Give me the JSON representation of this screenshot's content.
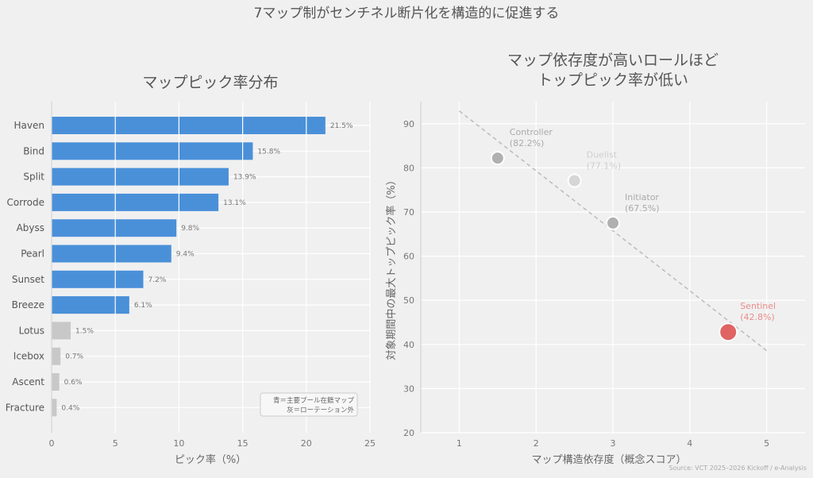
{
  "suptitle": "7マップ制がセンチネル断片化を構造的に促進する",
  "source": "Source: VCT 2025–2026 Kickoff / e-Analysis",
  "colors": {
    "primary": "#4a90d9",
    "rotation": "#c8c8c8",
    "sentinel": "#e06464",
    "other_role": "#b4b4b4",
    "trend": "#bbbbbb"
  },
  "chart_data": [
    {
      "type": "bar",
      "orientation": "horizontal",
      "title": "マップピック率分布",
      "xlabel": "ピック率（%）",
      "ylabel": "",
      "xlim": [
        0,
        25
      ],
      "xticks": [
        0,
        5,
        10,
        15,
        20,
        25
      ],
      "categories": [
        "Haven",
        "Bind",
        "Split",
        "Corrode",
        "Abyss",
        "Pearl",
        "Sunset",
        "Breeze",
        "Lotus",
        "Icebox",
        "Ascent",
        "Fracture"
      ],
      "values": [
        21.5,
        15.8,
        13.9,
        13.1,
        9.8,
        9.4,
        7.2,
        6.1,
        1.5,
        0.7,
        0.6,
        0.4
      ],
      "value_labels": [
        "21.5%",
        "15.8%",
        "13.9%",
        "13.1%",
        "9.8%",
        "9.4%",
        "7.2%",
        "6.1%",
        "1.5%",
        "0.7%",
        "0.6%",
        "0.4%"
      ],
      "groups": [
        "primary",
        "primary",
        "primary",
        "primary",
        "primary",
        "primary",
        "primary",
        "primary",
        "rotation",
        "rotation",
        "rotation",
        "rotation"
      ],
      "legend_lines": [
        "青＝主要プール在籍マップ",
        "灰＝ローテーション外"
      ],
      "legend_position": "bottom-right",
      "grid": true
    },
    {
      "type": "scatter",
      "title_lines": [
        "マップ依存度が高いロールほど",
        "トップピック率が低い"
      ],
      "xlabel": "マップ構造依存度（概念スコア）",
      "ylabel": "対象期間中の最大トップピック率（%）",
      "xlim": [
        0.5,
        5.5
      ],
      "ylim": [
        20,
        95
      ],
      "xticks": [
        1,
        2,
        3,
        4,
        5
      ],
      "yticks": [
        20,
        30,
        40,
        50,
        60,
        70,
        80,
        90
      ],
      "points": [
        {
          "role": "Controller",
          "x": 1.5,
          "y": 82.2,
          "label": "(82.2%)",
          "color": "#b0b0b0",
          "label_color": "#aaaaaa",
          "size": "small"
        },
        {
          "role": "Duelist",
          "x": 2.5,
          "y": 77.1,
          "label": "(77.1%)",
          "color": "#d6d6d6",
          "label_color": "#cfcfcf",
          "size": "small"
        },
        {
          "role": "Initiator",
          "x": 3.0,
          "y": 67.5,
          "label": "(67.5%)",
          "color": "#b0b0b0",
          "label_color": "#aaaaaa",
          "size": "small"
        },
        {
          "role": "Sentinel",
          "x": 4.5,
          "y": 42.8,
          "label": "(42.8%)",
          "color": "#e06464",
          "label_color": "#ec8c8c",
          "size": "large"
        }
      ],
      "trendline": {
        "x": [
          1.0,
          5.0
        ],
        "y": [
          92.9,
          38.6
        ]
      },
      "grid": true
    }
  ]
}
